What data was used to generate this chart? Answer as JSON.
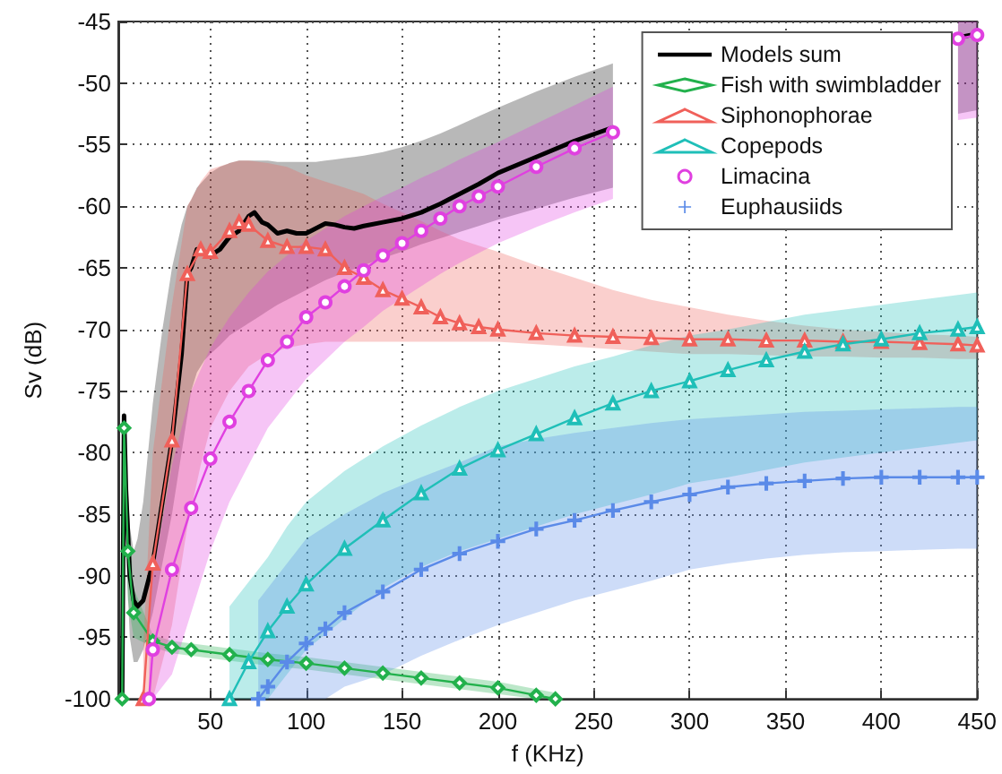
{
  "chart_data": {
    "type": "line",
    "xlabel": "f (KHz)",
    "ylabel": "Sv (dB)",
    "xlim": [
      2,
      450
    ],
    "ylim": [
      -100,
      -45
    ],
    "xticks": [
      50,
      100,
      150,
      200,
      250,
      300,
      350,
      400,
      450
    ],
    "yticks": [
      -100,
      -95,
      -90,
      -85,
      -80,
      -75,
      -70,
      -65,
      -60,
      -55,
      -50,
      -45
    ],
    "grid": true,
    "legend": "top right",
    "series": [
      {
        "name": "Models sum",
        "color": "#000000",
        "marker": "none",
        "x": [
          4,
          5,
          6,
          8,
          10,
          12,
          15,
          20,
          25,
          30,
          35,
          38,
          40,
          43,
          47,
          50,
          55,
          60,
          65,
          70,
          73,
          77,
          80,
          85,
          90,
          95,
          100,
          105,
          110,
          115,
          120,
          125,
          130,
          140,
          150,
          160,
          170,
          180,
          190,
          200,
          220,
          240,
          260,
          280,
          300,
          320,
          340,
          360,
          380,
          400,
          420,
          440,
          450
        ],
        "values": [
          -100,
          -77,
          -83,
          -90,
          -92,
          -92.5,
          -92,
          -89,
          -84,
          -79,
          -72,
          -65.5,
          -65,
          -63.5,
          -63.8,
          -64,
          -63.5,
          -62.5,
          -62,
          -60.8,
          -60.5,
          -61.3,
          -61.5,
          -62.2,
          -62,
          -62.2,
          -62.2,
          -61.8,
          -61.4,
          -61.5,
          -61.7,
          -61.8,
          -61.6,
          -61.3,
          -61,
          -60.5,
          -59.8,
          -59,
          -58.2,
          -57.3,
          -56,
          -54.7,
          -53.6,
          null,
          null,
          null,
          null,
          null,
          null,
          null,
          null,
          -46.3,
          -46
        ],
        "upper": [
          -98,
          -76.5,
          -80,
          -86,
          -88,
          -87,
          -84,
          -76,
          -70,
          -65,
          -61.5,
          -60,
          -59.5,
          -58.5,
          -57.8,
          -57.3,
          -56.8,
          -56.5,
          -56.3,
          -56.3,
          -56.3,
          -56.3,
          -56.3,
          -56.4,
          -56.4,
          -56.4,
          -56.4,
          -56.4,
          -56.3,
          -56.2,
          -56.1,
          -56,
          -55.9,
          -55.6,
          -55.2,
          -54.7,
          -54.1,
          -53.4,
          -52.7,
          -52,
          -50.7,
          -49.5,
          -48.4,
          null,
          null,
          null,
          null,
          null,
          null,
          null,
          null,
          -45,
          -45
        ],
        "lower": [
          -100,
          -80,
          -88,
          -95,
          -97,
          -97,
          -96,
          -93,
          -89,
          -85,
          -80,
          -77,
          -75,
          -73.5,
          -72.5,
          -72,
          -71.3,
          -70.5,
          -70,
          -69.5,
          -69.2,
          -68.8,
          -68.5,
          -68,
          -67.6,
          -67.2,
          -66.8,
          -66.4,
          -66,
          -65.7,
          -65.4,
          -65.1,
          -64.8,
          -64.2,
          -63.7,
          -63.1,
          -62.6,
          -62.1,
          -61.6,
          -61.1,
          -60.2,
          -59.3,
          -58.5,
          null,
          null,
          null,
          null,
          null,
          null,
          null,
          null,
          -52.5,
          -52.2
        ]
      },
      {
        "name": "Fish with swimbladder",
        "color": "#22b14c",
        "marker": "diamond",
        "x": [
          4,
          5,
          7,
          10,
          20,
          30,
          40,
          60,
          80,
          100,
          120,
          140,
          160,
          180,
          200,
          220,
          230
        ],
        "values": [
          -100,
          -78,
          -88,
          -93,
          -95.3,
          -95.8,
          -96,
          -96.4,
          -96.8,
          -97.1,
          -97.5,
          -97.9,
          -98.3,
          -98.7,
          -99.1,
          -99.7,
          -100
        ],
        "upper": [
          -97,
          -76.5,
          -84,
          -91,
          -94.8,
          -95.3,
          -95.5,
          -95.9,
          -96.3,
          -96.6,
          -97,
          -97.4,
          -97.8,
          -98.2,
          -98.6,
          -99.2,
          -99.5
        ],
        "lower": [
          -100,
          -80,
          -92,
          -95,
          -95.8,
          -96.3,
          -96.5,
          -96.9,
          -97.3,
          -97.6,
          -98,
          -98.4,
          -98.8,
          -99.2,
          -99.6,
          -100,
          -100
        ]
      },
      {
        "name": "Siphonophorae",
        "color": "#f0605a",
        "marker": "triangle",
        "x": [
          15,
          20,
          30,
          38,
          45,
          50,
          60,
          65,
          70,
          80,
          90,
          100,
          110,
          120,
          130,
          140,
          150,
          160,
          170,
          180,
          190,
          200,
          220,
          240,
          260,
          280,
          300,
          320,
          340,
          360,
          380,
          400,
          420,
          440,
          450
        ],
        "values": [
          -100,
          -89,
          -79,
          -65.5,
          -63.5,
          -63.7,
          -62,
          -61.3,
          -61.5,
          -62.8,
          -63.3,
          -63.3,
          -63.5,
          -65,
          -65.8,
          -66.8,
          -67.5,
          -68.2,
          -69,
          -69.5,
          -69.8,
          -70,
          -70.3,
          -70.5,
          -70.6,
          -70.7,
          -70.8,
          -70.8,
          -70.9,
          -70.9,
          -71,
          -71,
          -71.1,
          -71.2,
          -71.3
        ],
        "upper": [
          -96,
          -80,
          -68,
          -60,
          -58,
          -57,
          -56.5,
          -56.3,
          -56.3,
          -56.5,
          -56.8,
          -57.5,
          -58,
          -58.5,
          -59,
          -59.8,
          -60.5,
          -61.2,
          -62,
          -62.7,
          -63.2,
          -63.7,
          -64.8,
          -65.8,
          -66.8,
          -67.6,
          -68.2,
          -68.8,
          -69.3,
          -69.7,
          -70,
          -70.2,
          -70.4,
          -70.5,
          -70.6
        ],
        "lower": [
          -100,
          -100,
          -94,
          -86,
          -81,
          -78,
          -75,
          -74,
          -73,
          -72,
          -71.5,
          -71.2,
          -71,
          -71,
          -71,
          -71,
          -71,
          -71,
          -71,
          -71,
          -71,
          -71,
          -71.2,
          -71.4,
          -71.6,
          -71.8,
          -72,
          -72,
          -72.1,
          -72.2,
          -72.2,
          -72.3,
          -72.3,
          -72.4,
          -72.4
        ]
      },
      {
        "name": "Copepods",
        "color": "#1fbfb8",
        "marker": "triangle",
        "x": [
          60,
          70,
          80,
          90,
          100,
          120,
          140,
          160,
          180,
          200,
          220,
          240,
          260,
          280,
          300,
          320,
          340,
          360,
          380,
          400,
          420,
          440,
          450
        ],
        "values": [
          -100,
          -97,
          -94.5,
          -92.5,
          -90.7,
          -87.8,
          -85.5,
          -83.3,
          -81.3,
          -79.8,
          -78.5,
          -77.2,
          -76,
          -75,
          -74.2,
          -73.3,
          -72.5,
          -71.8,
          -71.2,
          -70.8,
          -70.3,
          -70,
          -69.8
        ],
        "upper": [
          -92.5,
          -90.5,
          -88.5,
          -86,
          -84,
          -81.5,
          -79.5,
          -77.8,
          -76.3,
          -75,
          -74,
          -73,
          -72.2,
          -71.3,
          -70.5,
          -70,
          -69.4,
          -68.8,
          -68.4,
          -68,
          -67.6,
          -67.2,
          -67
        ],
        "lower": [
          -100,
          -100,
          -100,
          -98,
          -96,
          -93.5,
          -91,
          -89.3,
          -88,
          -87,
          -86,
          -85,
          -84.2,
          -83.4,
          -82.5,
          -82,
          -81.4,
          -80.8,
          -80.4,
          -80,
          -79.6,
          -79.2,
          -79
        ]
      },
      {
        "name": "Limacina",
        "color": "#e040e0",
        "marker": "circle",
        "x": [
          18,
          20,
          30,
          40,
          50,
          60,
          70,
          80,
          90,
          100,
          110,
          120,
          130,
          140,
          150,
          160,
          170,
          180,
          190,
          200,
          220,
          240,
          260,
          280,
          300,
          320,
          340,
          360,
          380,
          400,
          420,
          440,
          450
        ],
        "values": [
          -100,
          -96,
          -89.5,
          -84.5,
          -80.5,
          -77.5,
          -75,
          -72.5,
          -71,
          -69,
          -67.8,
          -66.5,
          -65.2,
          -64,
          -63,
          -62,
          -61,
          -60,
          -59.2,
          -58.4,
          -56.8,
          -55.3,
          -54,
          null,
          null,
          null,
          null,
          null,
          null,
          null,
          null,
          -46.4,
          -46.1
        ],
        "upper": [
          -92,
          -90,
          -81,
          -75,
          -71.5,
          -69,
          -67,
          -65.3,
          -64,
          -62.8,
          -61.8,
          -60.8,
          -60,
          -59.2,
          -58.5,
          -57.7,
          -57,
          -56.2,
          -55.5,
          -54.8,
          -53.3,
          -51.8,
          -50.3,
          null,
          null,
          null,
          null,
          null,
          null,
          null,
          null,
          -45,
          -45
        ],
        "lower": [
          -100,
          -100,
          -98,
          -93,
          -88,
          -84,
          -81,
          -78,
          -76,
          -74,
          -72.5,
          -71,
          -69.8,
          -68.5,
          -67.5,
          -66.5,
          -65.5,
          -64.6,
          -63.8,
          -63,
          -61.7,
          -60.5,
          -59.4,
          null,
          null,
          null,
          null,
          null,
          null,
          null,
          null,
          -53,
          -52.8
        ]
      },
      {
        "name": "Euphausiids",
        "color": "#5a8ae8",
        "marker": "cross",
        "x": [
          75,
          80,
          90,
          100,
          110,
          120,
          140,
          160,
          180,
          200,
          220,
          240,
          260,
          280,
          300,
          320,
          340,
          360,
          380,
          400,
          420,
          440,
          450
        ],
        "values": [
          -100,
          -99,
          -97,
          -95.5,
          -94.3,
          -93,
          -91.3,
          -89.5,
          -88.2,
          -87.2,
          -86.2,
          -85.5,
          -84.7,
          -84,
          -83.4,
          -82.8,
          -82.5,
          -82.3,
          -82.1,
          -82,
          -82,
          -82,
          -82
        ],
        "upper": [
          -92,
          -91,
          -89,
          -87,
          -86,
          -85,
          -83.3,
          -82,
          -80.8,
          -79.5,
          -78.9,
          -78.4,
          -78,
          -77.6,
          -77.3,
          -77.1,
          -76.9,
          -76.7,
          -76.6,
          -76.5,
          -76.4,
          -76.3,
          -76.3
        ],
        "lower": [
          -100,
          -100,
          -100,
          -100,
          -100,
          -99,
          -98,
          -96.5,
          -95.2,
          -94,
          -93,
          -92,
          -91.2,
          -90.4,
          -89.5,
          -89,
          -88.6,
          -88.3,
          -88.1,
          -88,
          -87.9,
          -87.8,
          -87.8
        ]
      }
    ]
  }
}
